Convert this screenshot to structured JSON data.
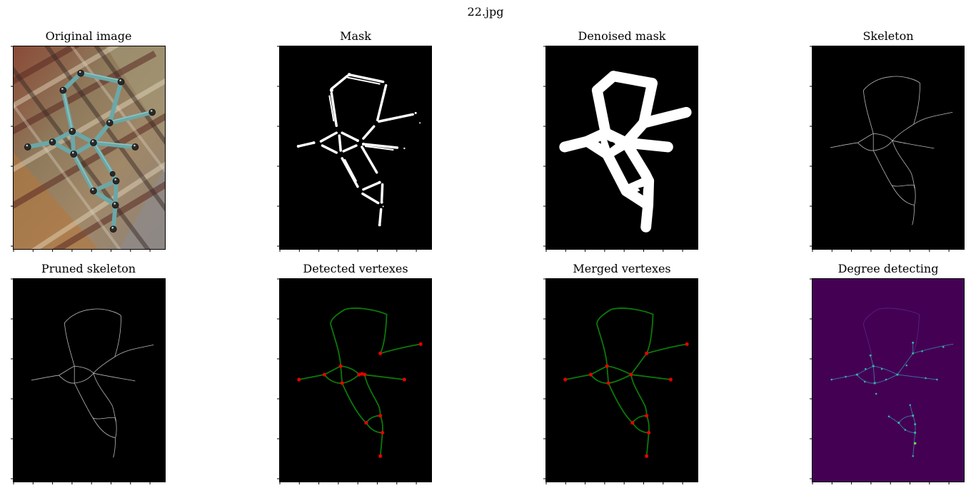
{
  "figure": {
    "title": "22.jpg"
  },
  "panels": [
    {
      "title": "Original image"
    },
    {
      "title": "Mask"
    },
    {
      "title": "Denoised mask"
    },
    {
      "title": "Skeleton"
    },
    {
      "title": "Pruned skeleton"
    },
    {
      "title": "Detected vertexes"
    },
    {
      "title": "Merged vertexes"
    },
    {
      "title": "Degree detecting"
    }
  ],
  "colors": {
    "skeleton": "#b8b8b8",
    "graph_edges": "#0a7a0a",
    "vertex": "#e60000",
    "degree_background": "#440154",
    "degree_edges": "#3b78a8",
    "degree_nodes": "#35b5a0"
  }
}
